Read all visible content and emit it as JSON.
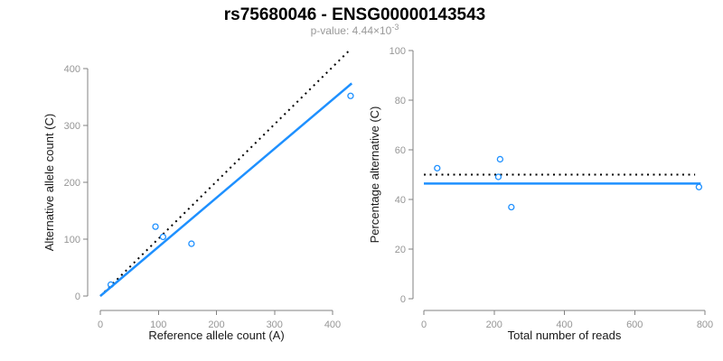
{
  "header": {
    "title": "rs75680046 - ENSG00000143543",
    "pvalue_label": "p-value: 4.44×10",
    "pvalue_exponent": "-3"
  },
  "colors": {
    "accent_blue": "#1e90ff",
    "dotted_black": "#000000",
    "axis_gray": "#808080",
    "tick_label_gray": "#969696",
    "axis_title_dark": "#1a1a1a",
    "subtitle_gray": "#999999",
    "background": "#ffffff"
  },
  "chart_data": [
    {
      "type": "scatter",
      "panel": "left",
      "title": "",
      "xlabel": "Reference allele count (A)",
      "ylabel": "Alternative allele count (C)",
      "xlim": [
        0,
        435
      ],
      "ylim": [
        0,
        435
      ],
      "xticks": [
        0,
        100,
        200,
        300,
        400
      ],
      "yticks": [
        0,
        100,
        200,
        300,
        400
      ],
      "grid": false,
      "legend": "none",
      "marker": "open-circle",
      "point_color": "#1e90ff",
      "points": [
        [
          18,
          20
        ],
        [
          95,
          122
        ],
        [
          108,
          104
        ],
        [
          157,
          92
        ],
        [
          431,
          352
        ]
      ],
      "lines": [
        {
          "name": "identity",
          "description": "y = x expected 50/50 line",
          "style": "dotted",
          "color": "#000000",
          "from": [
            0,
            0
          ],
          "to": [
            429,
            432
          ]
        },
        {
          "name": "fit",
          "description": "fitted allelic ratio line, slope 0.864",
          "style": "solid",
          "color": "#1e90ff",
          "from": [
            0,
            0
          ],
          "to": [
            433,
            374
          ]
        }
      ]
    },
    {
      "type": "scatter",
      "panel": "right",
      "title": "",
      "xlabel": "Total number of reads",
      "ylabel": "Percentage alternative (C)",
      "xlim": [
        0,
        800
      ],
      "ylim": [
        0,
        100
      ],
      "xticks": [
        0,
        200,
        400,
        600,
        800
      ],
      "yticks": [
        0,
        20,
        40,
        60,
        80,
        100
      ],
      "grid": false,
      "legend": "none",
      "marker": "open-circle",
      "point_color": "#1e90ff",
      "points": [
        [
          38,
          52.6
        ],
        [
          217,
          56.2
        ],
        [
          212,
          49.1
        ],
        [
          249,
          36.9
        ],
        [
          783,
          45.0
        ]
      ],
      "lines": [
        {
          "name": "expected",
          "description": "expected 50% dotted line",
          "style": "dotted",
          "color": "#000000",
          "from": [
            0,
            50
          ],
          "to": [
            772,
            50
          ]
        },
        {
          "name": "fit",
          "description": "fitted mean percentage 46.4%",
          "style": "solid",
          "color": "#1e90ff",
          "from": [
            0,
            46.4
          ],
          "to": [
            788,
            46.4
          ]
        }
      ]
    }
  ]
}
